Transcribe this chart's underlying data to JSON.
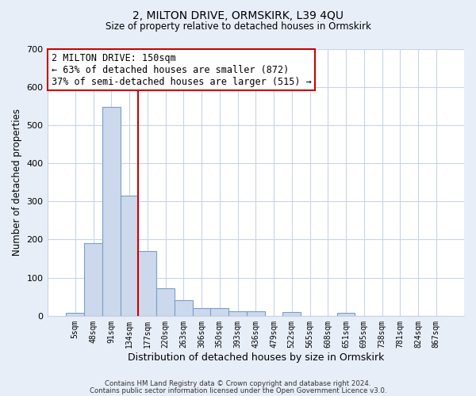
{
  "title": "2, MILTON DRIVE, ORMSKIRK, L39 4QU",
  "subtitle": "Size of property relative to detached houses in Ormskirk",
  "xlabel": "Distribution of detached houses by size in Ormskirk",
  "ylabel": "Number of detached properties",
  "bar_labels": [
    "5sqm",
    "48sqm",
    "91sqm",
    "134sqm",
    "177sqm",
    "220sqm",
    "263sqm",
    "306sqm",
    "350sqm",
    "393sqm",
    "436sqm",
    "479sqm",
    "522sqm",
    "565sqm",
    "608sqm",
    "651sqm",
    "695sqm",
    "738sqm",
    "781sqm",
    "824sqm",
    "867sqm"
  ],
  "bar_values": [
    8,
    190,
    547,
    315,
    170,
    73,
    42,
    20,
    20,
    12,
    12,
    0,
    10,
    0,
    0,
    8,
    0,
    0,
    0,
    0,
    0
  ],
  "bar_color": "#ccd9ed",
  "bar_edge_color": "#7a9ec8",
  "vline_x_pos": 3.5,
  "vline_color": "#cc0000",
  "annotation_text": "2 MILTON DRIVE: 150sqm\n← 63% of detached houses are smaller (872)\n37% of semi-detached houses are larger (515) →",
  "annotation_box_color": "#ffffff",
  "annotation_box_edge_color": "#cc0000",
  "ylim": [
    0,
    700
  ],
  "yticks": [
    0,
    100,
    200,
    300,
    400,
    500,
    600,
    700
  ],
  "grid_color": "#c8d4e8",
  "footnote1": "Contains HM Land Registry data © Crown copyright and database right 2024.",
  "footnote2": "Contains public sector information licensed under the Open Government Licence v3.0.",
  "fig_bg_color": "#e8eef8",
  "plot_bg_color": "#ffffff"
}
